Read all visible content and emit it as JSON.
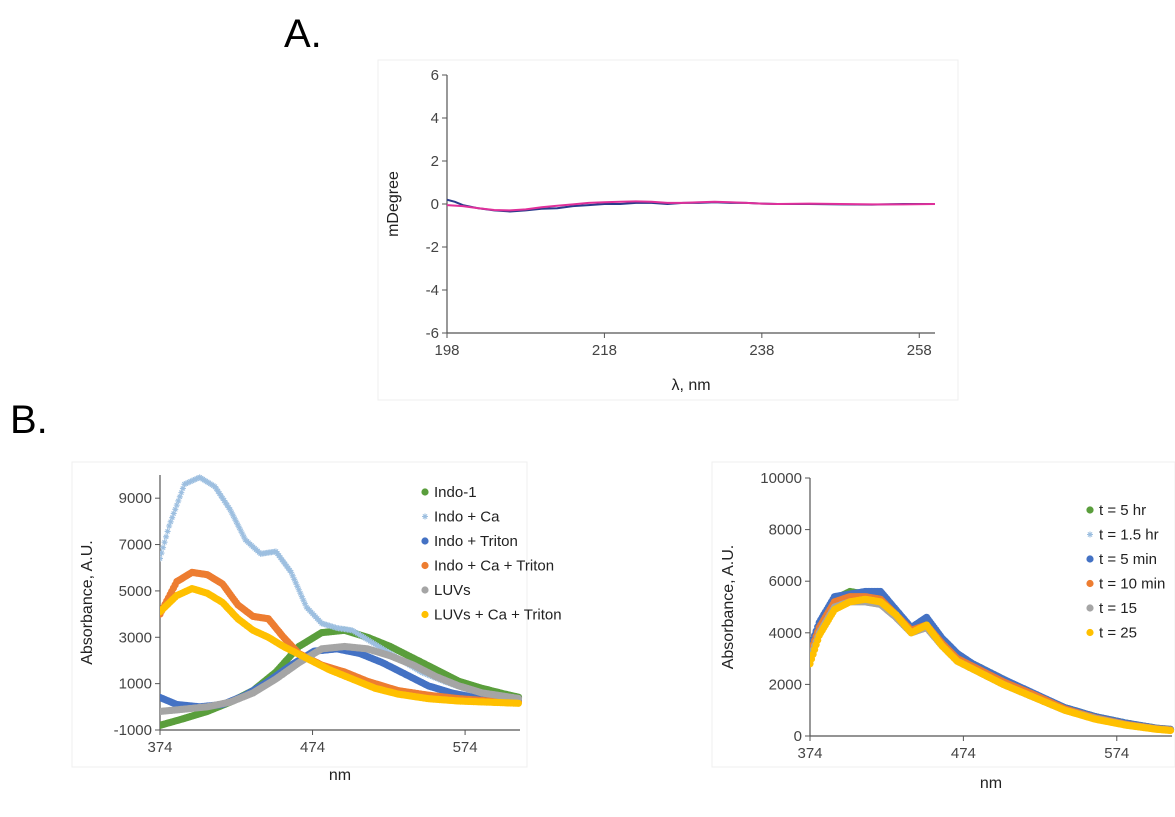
{
  "panels": {
    "a": "A.",
    "b": "B."
  },
  "chart_data": [
    {
      "type": "line",
      "xlabel": "λ, nm",
      "ylabel": "mDegree",
      "xlim": [
        198,
        260
      ],
      "ylim": [
        -6,
        6
      ],
      "xticks": [
        198,
        218,
        238,
        258
      ],
      "yticks": [
        -6,
        -4,
        -2,
        0,
        2,
        4,
        6
      ],
      "legend": "none",
      "series": [
        {
          "color": "#2b3a8c",
          "x": [
            198,
            199,
            200,
            202,
            204,
            206,
            208,
            210,
            212,
            214,
            216,
            218,
            220,
            222,
            224,
            226,
            228,
            230,
            232,
            234,
            236,
            238,
            240,
            244,
            248,
            252,
            256,
            260
          ],
          "y": [
            0.2,
            0.1,
            -0.05,
            -0.2,
            -0.3,
            -0.35,
            -0.3,
            -0.22,
            -0.2,
            -0.1,
            -0.05,
            0.0,
            0.0,
            0.05,
            0.05,
            0.0,
            0.05,
            0.05,
            0.08,
            0.05,
            0.05,
            0.02,
            0.0,
            0.0,
            -0.02,
            -0.03,
            0.0,
            0.0
          ]
        },
        {
          "color": "#e0309a",
          "x": [
            198,
            200,
            202,
            204,
            206,
            208,
            210,
            212,
            214,
            216,
            218,
            220,
            222,
            224,
            226,
            228,
            230,
            232,
            234,
            236,
            238,
            240,
            244,
            248,
            252,
            256,
            260
          ],
          "y": [
            -0.05,
            -0.1,
            -0.2,
            -0.28,
            -0.3,
            -0.25,
            -0.15,
            -0.08,
            -0.02,
            0.05,
            0.08,
            0.1,
            0.12,
            0.1,
            0.05,
            0.05,
            0.08,
            0.1,
            0.08,
            0.05,
            0.02,
            0.0,
            0.02,
            0.0,
            -0.02,
            -0.02,
            0.0
          ]
        }
      ]
    },
    {
      "type": "scatter",
      "xlabel": "nm",
      "ylabel": "Absorbance, A.U.",
      "xlim": [
        374,
        610
      ],
      "ylim": [
        -1000,
        10000
      ],
      "xticks": [
        374,
        474,
        574
      ],
      "yticks": [
        -1000,
        1000,
        3000,
        5000,
        7000,
        9000
      ],
      "legend": "top-right",
      "series": [
        {
          "name": "Indo-1",
          "color": "#5a9e3c",
          "marker": "circle",
          "x": [
            374,
            390,
            405,
            420,
            435,
            450,
            465,
            480,
            495,
            510,
            525,
            540,
            555,
            570,
            585,
            600,
            610
          ],
          "y": [
            -800,
            -500,
            -200,
            200,
            700,
            1500,
            2600,
            3200,
            3300,
            3000,
            2600,
            2100,
            1600,
            1100,
            800,
            550,
            400
          ]
        },
        {
          "name": "Indo + Ca",
          "color": "#9dbfe0",
          "marker": "star",
          "x": [
            374,
            380,
            390,
            400,
            410,
            420,
            430,
            440,
            450,
            460,
            470,
            480,
            490,
            500,
            515,
            530,
            545,
            560,
            575,
            590,
            610
          ],
          "y": [
            6400,
            7800,
            9600,
            9900,
            9500,
            8500,
            7200,
            6600,
            6700,
            5800,
            4300,
            3600,
            3400,
            3300,
            2700,
            2100,
            1500,
            1100,
            750,
            500,
            350
          ]
        },
        {
          "name": "Indo + Triton",
          "color": "#4472c4",
          "marker": "circle",
          "x": [
            374,
            385,
            400,
            415,
            430,
            445,
            460,
            475,
            490,
            505,
            520,
            535,
            550,
            565,
            580,
            595,
            610
          ],
          "y": [
            400,
            100,
            0,
            100,
            500,
            1100,
            1800,
            2400,
            2500,
            2300,
            1900,
            1400,
            900,
            600,
            400,
            300,
            250
          ]
        },
        {
          "name": "Indo + Ca + Triton",
          "color": "#ed7d31",
          "marker": "circle",
          "x": [
            374,
            385,
            395,
            405,
            415,
            425,
            435,
            445,
            455,
            465,
            480,
            495,
            510,
            530,
            550,
            570,
            590,
            610
          ],
          "y": [
            4000,
            5400,
            5800,
            5700,
            5300,
            4400,
            3900,
            3800,
            3000,
            2300,
            1800,
            1500,
            1100,
            700,
            500,
            350,
            250,
            200
          ]
        },
        {
          "name": "LUVs",
          "color": "#a5a5a5",
          "marker": "circle",
          "x": [
            374,
            390,
            405,
            420,
            435,
            450,
            465,
            480,
            495,
            510,
            525,
            540,
            555,
            570,
            585,
            600,
            610
          ],
          "y": [
            -200,
            -100,
            0,
            200,
            600,
            1200,
            1900,
            2500,
            2600,
            2500,
            2200,
            1800,
            1300,
            900,
            600,
            450,
            350
          ]
        },
        {
          "name": "LUVs + Ca + Triton",
          "color": "#ffc000",
          "marker": "circle",
          "x": [
            374,
            385,
            395,
            405,
            415,
            425,
            435,
            445,
            455,
            470,
            485,
            500,
            515,
            530,
            550,
            570,
            590,
            610
          ],
          "y": [
            4100,
            4800,
            5100,
            4900,
            4500,
            3800,
            3300,
            3000,
            2600,
            2100,
            1600,
            1200,
            800,
            550,
            350,
            250,
            200,
            150
          ]
        }
      ]
    },
    {
      "type": "scatter",
      "xlabel": "nm",
      "ylabel": "Absorbance, A.U.",
      "xlim": [
        374,
        610
      ],
      "ylim": [
        0,
        10000
      ],
      "xticks": [
        374,
        474,
        574
      ],
      "yticks": [
        0,
        2000,
        4000,
        6000,
        8000,
        10000
      ],
      "legend": "right",
      "series": [
        {
          "name": "t = 5 hr",
          "color": "#5a9e3c",
          "marker": "circle",
          "x": [
            374,
            380,
            390,
            400,
            410,
            420,
            430,
            440,
            450,
            460,
            470,
            480,
            490,
            500,
            520,
            540,
            560,
            580,
            600,
            610
          ],
          "y": [
            3300,
            4300,
            5300,
            5600,
            5500,
            5400,
            4800,
            4100,
            4400,
            3700,
            3100,
            2800,
            2500,
            2200,
            1600,
            1100,
            750,
            500,
            300,
            250
          ]
        },
        {
          "name": "t = 1.5 hr",
          "color": "#9dbfe0",
          "marker": "star",
          "x": [
            374,
            380,
            390,
            400,
            410,
            420,
            430,
            440,
            450,
            460,
            470,
            480,
            490,
            500,
            520,
            540,
            560,
            580,
            600,
            610
          ],
          "y": [
            3100,
            4100,
            5100,
            5400,
            5300,
            5200,
            4700,
            4000,
            4300,
            3600,
            3000,
            2700,
            2400,
            2100,
            1600,
            1050,
            700,
            450,
            280,
            230
          ]
        },
        {
          "name": "t = 5 min",
          "color": "#4472c4",
          "marker": "circle",
          "x": [
            374,
            380,
            390,
            400,
            410,
            420,
            430,
            440,
            450,
            460,
            470,
            480,
            490,
            500,
            520,
            540,
            560,
            580,
            600,
            610
          ],
          "y": [
            3400,
            4400,
            5400,
            5500,
            5600,
            5600,
            4900,
            4200,
            4600,
            3800,
            3200,
            2800,
            2500,
            2200,
            1650,
            1100,
            750,
            500,
            300,
            250
          ]
        },
        {
          "name": "t = 10 min",
          "color": "#ed7d31",
          "marker": "circle",
          "x": [
            374,
            380,
            390,
            400,
            410,
            420,
            430,
            440,
            450,
            460,
            470,
            480,
            490,
            500,
            520,
            540,
            560,
            580,
            600,
            610
          ],
          "y": [
            3200,
            4200,
            5200,
            5400,
            5400,
            5300,
            4700,
            4100,
            4300,
            3600,
            3000,
            2700,
            2400,
            2100,
            1600,
            1050,
            700,
            450,
            280,
            230
          ]
        },
        {
          "name": "t = 15",
          "color": "#a5a5a5",
          "marker": "circle",
          "x": [
            374,
            380,
            390,
            400,
            410,
            420,
            430,
            440,
            450,
            460,
            470,
            480,
            490,
            500,
            520,
            540,
            560,
            580,
            600,
            610
          ],
          "y": [
            3000,
            4000,
            5000,
            5200,
            5200,
            5100,
            4600,
            4000,
            4200,
            3500,
            2900,
            2600,
            2300,
            2000,
            1500,
            1000,
            680,
            430,
            270,
            220
          ]
        },
        {
          "name": "t = 25",
          "color": "#ffc000",
          "marker": "circle",
          "x": [
            374,
            380,
            390,
            400,
            410,
            420,
            430,
            440,
            450,
            460,
            470,
            480,
            490,
            500,
            520,
            540,
            560,
            580,
            600,
            610
          ],
          "y": [
            2800,
            3900,
            4900,
            5200,
            5300,
            5200,
            4700,
            4000,
            4300,
            3500,
            2900,
            2600,
            2300,
            2000,
            1500,
            1000,
            650,
            420,
            260,
            210
          ]
        }
      ]
    }
  ]
}
